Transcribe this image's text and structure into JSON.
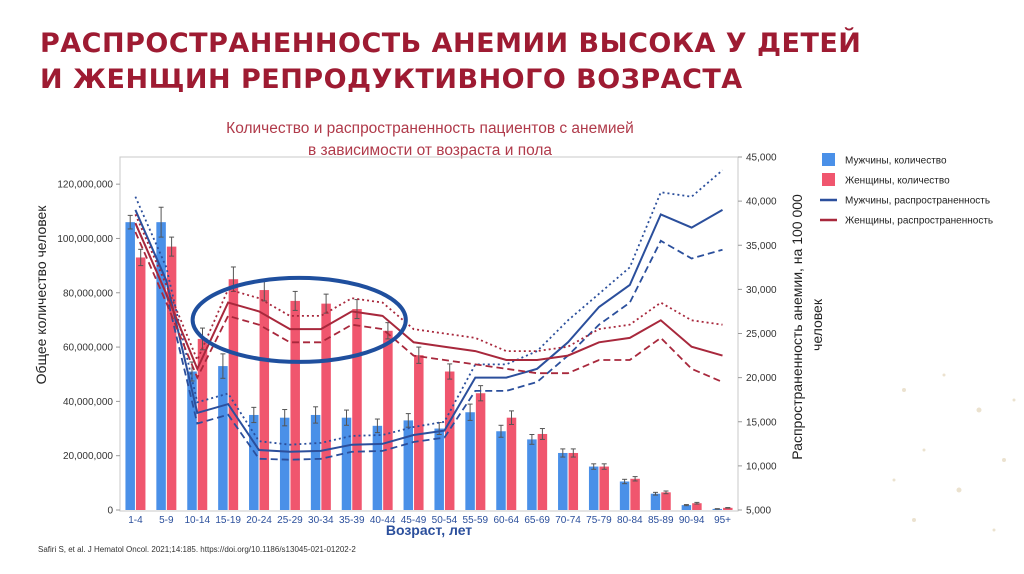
{
  "page": {
    "title_line1": "РАСПРОСТРАНЕННОСТЬ АНЕМИИ ВЫСОКА У ДЕТЕЙ",
    "title_line2": "И ЖЕНЩИН РЕПРОДУКТИВНОГО ВОЗРАСТА",
    "citation": "Safiri S, et al. J Hematol Oncol. 2021;14:185. https://doi.org/10.1186/s13045-021-01202-2",
    "accent_color": "#9e1b32"
  },
  "chart_data": {
    "type": "bar",
    "subtitle_line1": "Количество и распространенность пациентов с анемией",
    "subtitle_line2": "в зависимости от возраста и пола",
    "xlabel": "Возраст, лет",
    "ylabel_left": "Общее количество человек",
    "ylabel_right": "Распространенность анемии, на 100 000 человек",
    "ylim_left": [
      0,
      130000000
    ],
    "ylim_right": [
      5000,
      45000
    ],
    "yticks_left": [
      "0",
      "20,000,000",
      "40,000,000",
      "60,000,000",
      "80,000,000",
      "100,000,000",
      "120,000,000"
    ],
    "yticks_left_values": [
      0,
      20000000,
      40000000,
      60000000,
      80000000,
      100000000,
      120000000
    ],
    "yticks_right": [
      "5,000",
      "10,000",
      "15,000",
      "20,000",
      "25,000",
      "30,000",
      "35,000",
      "40,000",
      "45,000"
    ],
    "yticks_right_values": [
      5000,
      10000,
      15000,
      20000,
      25000,
      30000,
      35000,
      40000,
      45000
    ],
    "categories": [
      "1-4",
      "5-9",
      "10-14",
      "15-19",
      "20-24",
      "25-29",
      "30-34",
      "35-39",
      "40-44",
      "45-49",
      "50-54",
      "55-59",
      "60-64",
      "65-69",
      "70-74",
      "75-79",
      "80-84",
      "85-89",
      "90-94",
      "95+"
    ],
    "series": [
      {
        "name": "Мужчины, количество",
        "kind": "bar",
        "axis": "left",
        "color": "#4a90e8",
        "values": [
          106000000,
          106000000,
          51000000,
          53000000,
          35000000,
          34000000,
          35000000,
          34000000,
          31000000,
          33000000,
          30000000,
          36000000,
          29000000,
          26000000,
          21000000,
          16000000,
          10500000,
          6000000,
          1800000,
          400000
        ],
        "err": [
          2500000,
          5500000,
          3500000,
          4500000,
          2800000,
          3000000,
          3000000,
          2800000,
          2500000,
          2500000,
          2200000,
          3000000,
          2200000,
          1800000,
          1500000,
          1000000,
          800000,
          500000,
          200000,
          100000
        ]
      },
      {
        "name": "Женщины, количество",
        "kind": "bar",
        "axis": "left",
        "color": "#f0566e",
        "values": [
          93000000,
          97000000,
          63000000,
          85000000,
          81000000,
          77000000,
          76000000,
          74000000,
          66000000,
          57000000,
          51000000,
          43000000,
          34000000,
          28000000,
          21000000,
          16000000,
          11500000,
          6500000,
          2500000,
          800000
        ],
        "err": [
          3000000,
          3500000,
          4000000,
          4500000,
          4000000,
          3500000,
          3500000,
          3500000,
          3000000,
          3000000,
          2800000,
          2800000,
          2500000,
          2000000,
          1500000,
          1000000,
          800000,
          500000,
          300000,
          100000
        ]
      },
      {
        "name": "Мужчины, распространенность",
        "kind": "line",
        "axis": "right",
        "color": "#2b4f9c",
        "values": [
          39000,
          31000,
          16000,
          17000,
          11800,
          11600,
          11700,
          12400,
          12500,
          13500,
          14000,
          20000,
          20000,
          21000,
          24000,
          28000,
          30500,
          38500,
          37000,
          39000
        ],
        "upper": [
          40500,
          32500,
          17200,
          18200,
          12800,
          12400,
          12600,
          13400,
          13500,
          14400,
          15000,
          21500,
          21500,
          23000,
          26500,
          29500,
          32500,
          41000,
          40500,
          43500
        ],
        "lower": [
          37500,
          29500,
          14800,
          15800,
          10800,
          10700,
          10800,
          11600,
          11700,
          12700,
          13200,
          18500,
          18500,
          19500,
          22500,
          26000,
          28500,
          35500,
          33500,
          34500
        ]
      },
      {
        "name": "Женщины, распространенность",
        "kind": "line",
        "axis": "right",
        "color": "#a8283c",
        "values": [
          37500,
          29500,
          21000,
          28500,
          27500,
          25500,
          25500,
          27500,
          27000,
          24000,
          23500,
          23000,
          22000,
          22000,
          22500,
          24000,
          24500,
          26500,
          23500,
          22500
        ],
        "upper": [
          38500,
          30500,
          22000,
          30000,
          29000,
          27000,
          27000,
          29000,
          28500,
          25500,
          25000,
          24500,
          23000,
          23000,
          23500,
          25500,
          26000,
          28500,
          26500,
          26000
        ],
        "lower": [
          36500,
          28500,
          20000,
          27000,
          26000,
          24000,
          24000,
          26000,
          25500,
          22500,
          22000,
          21500,
          21000,
          20500,
          20500,
          22000,
          22000,
          24500,
          21000,
          19500
        ]
      }
    ],
    "legend": [
      {
        "label": "Мужчины, количество",
        "kind": "bar",
        "color": "#4a90e8"
      },
      {
        "label": "Женщины, количество",
        "kind": "bar",
        "color": "#f0566e"
      },
      {
        "label": "Мужчины, распространенность",
        "kind": "line",
        "color": "#2b4f9c"
      },
      {
        "label": "Женщины, распространенность",
        "kind": "line",
        "color": "#a8283c"
      }
    ],
    "legend_position": "right",
    "highlight": {
      "from_category": "15-19",
      "to_category": "40-44",
      "shape": "ellipse",
      "color": "#1f4f9e"
    },
    "grid": false
  }
}
